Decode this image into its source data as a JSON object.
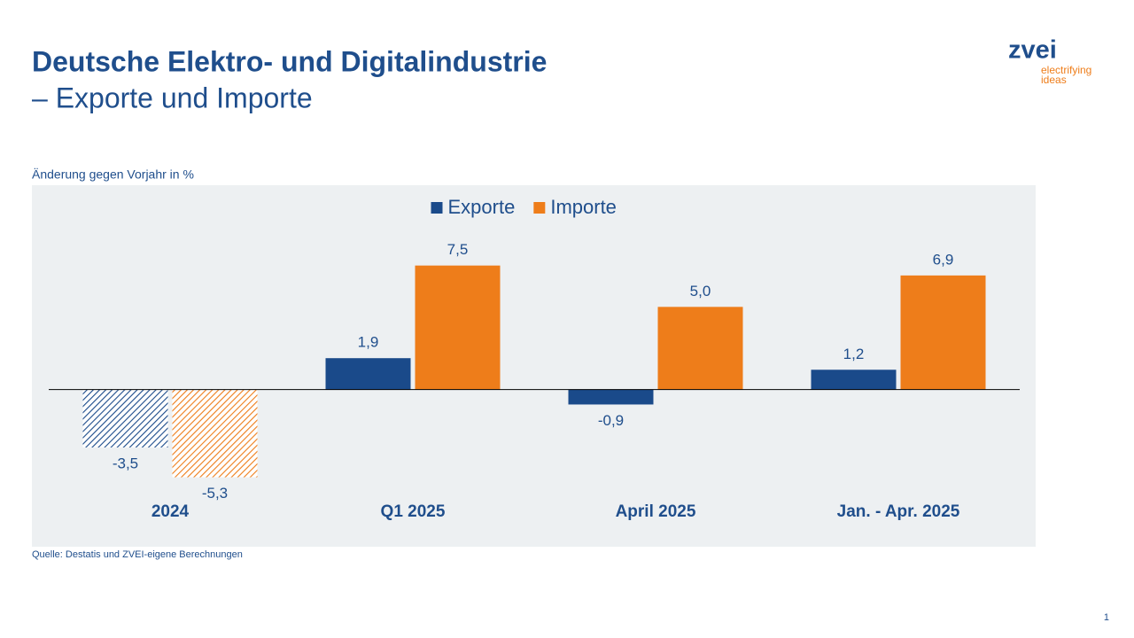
{
  "chart_data": {
    "type": "bar",
    "title": "Deutsche Elektro- und Digitalindustrie",
    "subtitle": "– Exporte und Importe",
    "y_label": "Änderung gegen Vorjahr in %",
    "source": "Quelle: Destatis und ZVEI-eigene Berechnungen",
    "categories": [
      "2024",
      "Q1 2025",
      "April 2025",
      "Jan. - Apr. 2025"
    ],
    "hatched": [
      true,
      false,
      false,
      false
    ],
    "series": [
      {
        "name": "Exporte",
        "color": "#1a4a8a",
        "values": [
          -3.5,
          1.9,
          -0.9,
          1.2
        ],
        "value_labels": [
          "-3,5",
          "1,9",
          "-0,9",
          "1,2"
        ]
      },
      {
        "name": "Importe",
        "color": "#ee7d1a",
        "values": [
          -5.3,
          7.5,
          5.0,
          6.9
        ],
        "value_labels": [
          "-5,3",
          "7,5",
          "5,0",
          "6,9"
        ]
      }
    ],
    "ylim": [
      -8,
      10
    ],
    "legend": "top"
  },
  "logo": {
    "name": "zvei",
    "tagline_1": "electrifying",
    "tagline_2": "ideas"
  },
  "page_number": "1"
}
